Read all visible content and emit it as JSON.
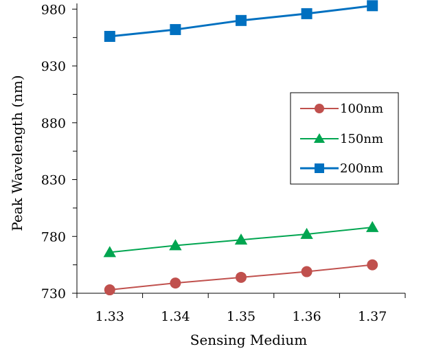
{
  "chart_data": {
    "type": "line",
    "title": "",
    "xlabel": "Sensing Medium",
    "ylabel": "Peak Wavelength (nm)",
    "x": [
      1.33,
      1.34,
      1.35,
      1.36,
      1.37
    ],
    "x_tick_labels": [
      "1.33",
      "1.34",
      "1.35",
      "1.36",
      "1.37"
    ],
    "xlim": [
      1.325,
      1.375
    ],
    "ylim": [
      730,
      985
    ],
    "y_tick_labels": [
      "730",
      "780",
      "830",
      "880",
      "930",
      "980"
    ],
    "y_ticks": [
      730,
      780,
      830,
      880,
      930,
      980
    ],
    "grid": false,
    "legend_position": "right-middle",
    "series": [
      {
        "name": "100nm",
        "marker": "circle",
        "color": "#c0504d",
        "values": [
          733,
          739,
          744,
          749,
          755
        ]
      },
      {
        "name": "150nm",
        "marker": "triangle",
        "color": "#00a550",
        "values": [
          766,
          772,
          777,
          782,
          788
        ]
      },
      {
        "name": "200nm",
        "marker": "square",
        "color": "#0070c0",
        "values": [
          956,
          962,
          970,
          976,
          983
        ]
      }
    ]
  }
}
